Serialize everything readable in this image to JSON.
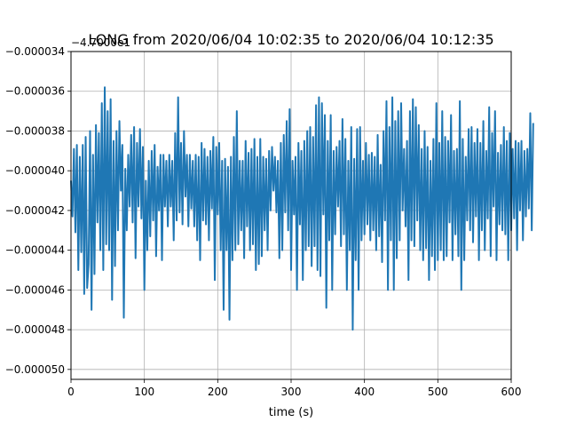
{
  "chart_data": {
    "type": "line",
    "title": "LONG from 2020/06/04 10:02:35 to 2020/06/04 10:12:35",
    "offset_label": "−4.7000e1",
    "xlabel": "time (s)",
    "ylabel": "",
    "xlim": [
      0,
      600
    ],
    "ylim": [
      -5.05e-05,
      -3.4e-05
    ],
    "x_ticks": [
      0,
      100,
      200,
      300,
      400,
      500,
      600
    ],
    "x_tick_labels": [
      "0",
      "100",
      "200",
      "300",
      "400",
      "500",
      "600"
    ],
    "y_ticks": [
      -5e-05,
      -4.8e-05,
      -4.6e-05,
      -4.4e-05,
      -4.2e-05,
      -4e-05,
      -3.8e-05,
      -3.6e-05,
      -3.4e-05
    ],
    "y_tick_labels": [
      "−0.000050",
      "−0.000048",
      "−0.000046",
      "−0.000044",
      "−0.000042",
      "−0.000040",
      "−0.000038",
      "−0.000036",
      "−0.000034"
    ],
    "grid": true,
    "legend": "none",
    "series_color": "#1f77b4",
    "series": [
      {
        "x_start": 0,
        "x_step": 2,
        "values": [
          -4.05e-05,
          -4.23e-05,
          -3.89e-05,
          -4.31e-05,
          -3.87e-05,
          -4.5e-05,
          -3.93e-05,
          -4.41e-05,
          -3.87e-05,
          -4.62e-05,
          -3.83e-05,
          -4.59e-05,
          -4.47e-05,
          -3.8e-05,
          -4.7e-05,
          -3.92e-05,
          -4.52e-05,
          -3.77e-05,
          -4.26e-05,
          -3.81e-05,
          -4.4e-05,
          -3.66e-05,
          -4.5e-05,
          -3.58e-05,
          -4.37e-05,
          -3.7e-05,
          -4.4e-05,
          -3.64e-05,
          -4.65e-05,
          -3.85e-05,
          -4.48e-05,
          -3.8e-05,
          -4.3e-05,
          -3.75e-05,
          -4.1e-05,
          -3.87e-05,
          -4.74e-05,
          -3.99e-05,
          -4.3e-05,
          -3.92e-05,
          -4.18e-05,
          -3.82e-05,
          -4.26e-05,
          -3.78e-05,
          -4.44e-05,
          -3.86e-05,
          -4.18e-05,
          -3.79e-05,
          -4.24e-05,
          -3.88e-05,
          -4.6e-05,
          -4.05e-05,
          -4.4e-05,
          -3.95e-05,
          -4.33e-05,
          -3.9e-05,
          -4.25e-05,
          -3.87e-05,
          -4.43e-05,
          -3.98e-05,
          -4.2e-05,
          -3.92e-05,
          -4.45e-05,
          -3.92e-05,
          -4.18e-05,
          -3.95e-05,
          -4.28e-05,
          -3.92e-05,
          -4.18e-05,
          -3.95e-05,
          -4.35e-05,
          -3.81e-05,
          -4.25e-05,
          -3.63e-05,
          -4.21e-05,
          -3.86e-05,
          -4.27e-05,
          -3.8e-05,
          -4.13e-05,
          -3.92e-05,
          -4.28e-05,
          -3.92e-05,
          -4.19e-05,
          -3.95e-05,
          -4.28e-05,
          -3.92e-05,
          -4.35e-05,
          -3.93e-05,
          -4.45e-05,
          -3.86e-05,
          -4.25e-05,
          -3.89e-05,
          -4.27e-05,
          -3.93e-05,
          -4.35e-05,
          -3.9e-05,
          -4.19e-05,
          -3.83e-05,
          -4.55e-05,
          -3.88e-05,
          -4.22e-05,
          -3.86e-05,
          -4.4e-05,
          -3.95e-05,
          -4.7e-05,
          -3.94e-05,
          -4.4e-05,
          -3.98e-05,
          -4.75e-05,
          -3.93e-05,
          -4.45e-05,
          -3.83e-05,
          -4.4e-05,
          -3.7e-05,
          -4.37e-05,
          -3.95e-05,
          -4.3e-05,
          -3.95e-05,
          -4.44e-05,
          -3.85e-05,
          -4.28e-05,
          -3.91e-05,
          -4.4e-05,
          -3.89e-05,
          -4.37e-05,
          -3.84e-05,
          -4.5e-05,
          -3.93e-05,
          -4.47e-05,
          -3.84e-05,
          -4.43e-05,
          -3.93e-05,
          -4.3e-05,
          -3.94e-05,
          -4.4e-05,
          -3.9e-05,
          -4.2e-05,
          -3.88e-05,
          -4.1e-05,
          -3.93e-05,
          -4.21e-05,
          -3.95e-05,
          -4.44e-05,
          -3.86e-05,
          -4.4e-05,
          -3.82e-05,
          -4.21e-05,
          -3.75e-05,
          -4.3e-05,
          -3.69e-05,
          -4.5e-05,
          -3.95e-05,
          -4.22e-05,
          -3.93e-05,
          -4.6e-05,
          -3.86e-05,
          -4.27e-05,
          -3.9e-05,
          -4.55e-05,
          -3.85e-05,
          -4.4e-05,
          -3.8e-05,
          -4.38e-05,
          -3.78e-05,
          -4.48e-05,
          -3.83e-05,
          -4.38e-05,
          -3.67e-05,
          -4.5e-05,
          -3.63e-05,
          -4.53e-05,
          -3.66e-05,
          -4.22e-05,
          -3.72e-05,
          -4.69e-05,
          -3.85e-05,
          -4.35e-05,
          -3.72e-05,
          -4.6e-05,
          -3.9e-05,
          -4.32e-05,
          -3.88e-05,
          -4.18e-05,
          -3.85e-05,
          -4.38e-05,
          -3.74e-05,
          -4.32e-05,
          -3.84e-05,
          -4.6e-05,
          -3.95e-05,
          -4.4e-05,
          -3.78e-05,
          -4.8e-05,
          -3.94e-05,
          -4.45e-05,
          -3.79e-05,
          -4.6e-05,
          -3.78e-05,
          -4.35e-05,
          -3.95e-05,
          -4.32e-05,
          -3.86e-05,
          -4.27e-05,
          -3.92e-05,
          -4.35e-05,
          -3.91e-05,
          -4.3e-05,
          -3.93e-05,
          -4.4e-05,
          -3.82e-05,
          -4.33e-05,
          -3.97e-05,
          -4.46e-05,
          -3.8e-05,
          -4.25e-05,
          -3.65e-05,
          -4.6e-05,
          -3.78e-05,
          -4.35e-05,
          -3.63e-05,
          -4.6e-05,
          -3.75e-05,
          -4.44e-05,
          -3.7e-05,
          -4.35e-05,
          -3.66e-05,
          -4.2e-05,
          -3.89e-05,
          -4.28e-05,
          -3.85e-05,
          -4.55e-05,
          -3.7e-05,
          -4.35e-05,
          -3.64e-05,
          -4.38e-05,
          -3.68e-05,
          -4.25e-05,
          -3.77e-05,
          -4.4e-05,
          -3.89e-05,
          -4.45e-05,
          -3.8e-05,
          -4.39e-05,
          -3.88e-05,
          -4.55e-05,
          -3.95e-05,
          -4.43e-05,
          -3.84e-05,
          -4.5e-05,
          -3.66e-05,
          -4.45e-05,
          -3.86e-05,
          -4.4e-05,
          -3.7e-05,
          -4.45e-05,
          -3.83e-05,
          -4.43e-05,
          -3.85e-05,
          -4.26e-05,
          -3.72e-05,
          -4.45e-05,
          -3.9e-05,
          -4.32e-05,
          -3.89e-05,
          -4.43e-05,
          -3.65e-05,
          -4.6e-05,
          -3.84e-05,
          -4.45e-05,
          -3.93e-05,
          -4.25e-05,
          -3.79e-05,
          -4.3e-05,
          -3.78e-05,
          -4.36e-05,
          -3.86e-05,
          -4.23e-05,
          -3.79e-05,
          -4.45e-05,
          -3.86e-05,
          -4.3e-05,
          -3.75e-05,
          -4.4e-05,
          -3.9e-05,
          -4.24e-05,
          -3.68e-05,
          -4.43e-05,
          -3.81e-05,
          -4.18e-05,
          -3.7e-05,
          -4.45e-05,
          -3.91e-05,
          -4.27e-05,
          -3.87e-05,
          -4.3e-05,
          -3.78e-05,
          -4.32e-05,
          -3.85e-05,
          -4.45e-05,
          -3.81e-05,
          -4.3e-05,
          -3.89e-05,
          -4.24e-05,
          -3.85e-05,
          -4.4e-05,
          -3.86e-05,
          -4.2e-05,
          -3.85e-05,
          -4.35e-05,
          -3.9e-05,
          -4.23e-05,
          -3.89e-05,
          -4.19e-05,
          -3.71e-05,
          -4.3e-05,
          -3.76e-05
        ]
      }
    ]
  }
}
